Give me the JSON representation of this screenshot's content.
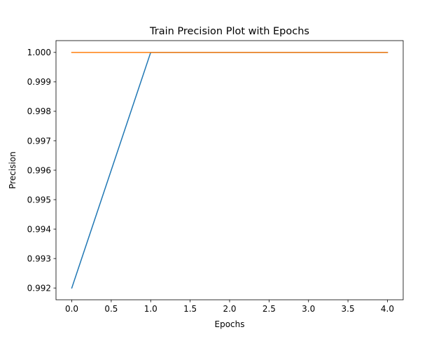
{
  "chart_data": {
    "type": "line",
    "title": "Train Precision Plot with Epochs",
    "xlabel": "Epochs",
    "ylabel": "Precision",
    "x": [
      0,
      1,
      2,
      3,
      4
    ],
    "series": [
      {
        "values": [
          0.992,
          1.0,
          1.0,
          1.0,
          1.0
        ],
        "color": "#1f77b4"
      },
      {
        "values": [
          1.0,
          1.0,
          1.0,
          1.0,
          1.0
        ],
        "color": "#ff7f0e"
      }
    ],
    "xlim": [
      -0.2,
      4.2
    ],
    "ylim": [
      0.9916,
      1.0004
    ],
    "xticks": [
      "0.0",
      "0.5",
      "1.0",
      "1.5",
      "2.0",
      "2.5",
      "3.0",
      "3.5",
      "4.0"
    ],
    "yticks": [
      "0.992",
      "0.993",
      "0.994",
      "0.995",
      "0.996",
      "0.997",
      "0.998",
      "0.999",
      "1.000"
    ],
    "grid": false,
    "legend": "none"
  }
}
